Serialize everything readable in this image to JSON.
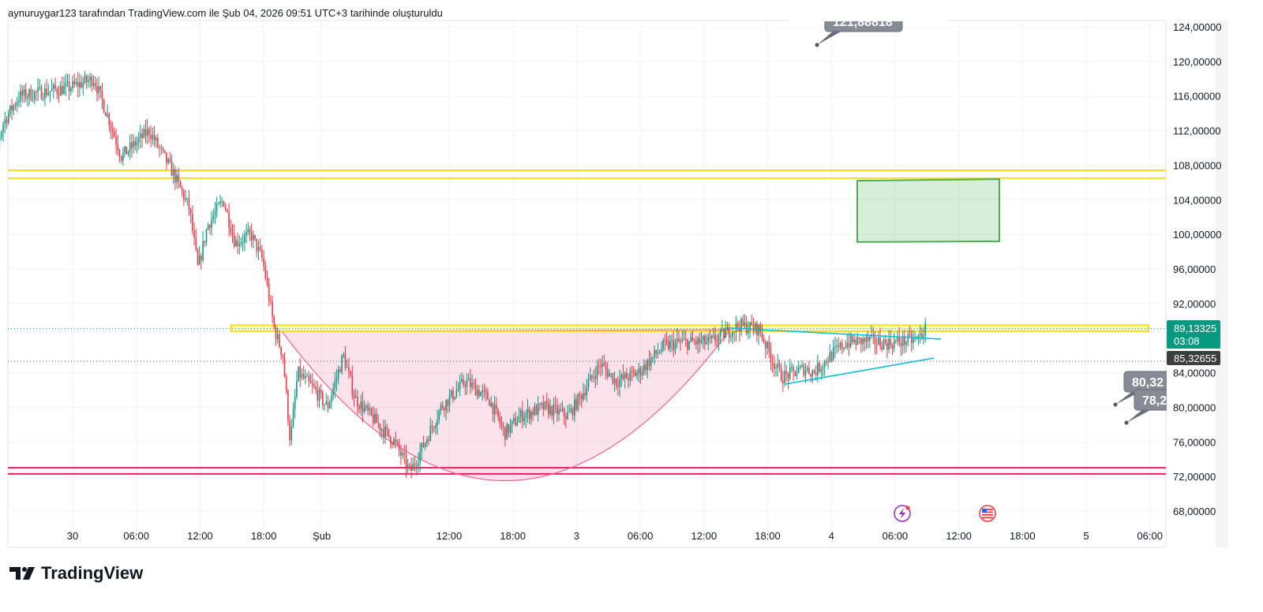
{
  "header": {
    "title": "aynuruygar123 tarafından TradingView.com ile Şub 04, 2026 09:51 UTC+3 tarihinde oluşturuldu"
  },
  "logo": {
    "text": "TradingView"
  },
  "chart_data": {
    "type": "candlestick",
    "title": "",
    "ylim": [
      66,
      126
    ],
    "y_ticks": [
      "124,00000",
      "120,00000",
      "116,00000",
      "112,00000",
      "108,00000",
      "104,00000",
      "100,00000",
      "96,00000",
      "92,00000",
      "84,00000",
      "80,00000",
      "76,00000",
      "72,00000",
      "68,00000"
    ],
    "y_tick_values": [
      124,
      120,
      116,
      112,
      108,
      104,
      100,
      96,
      92,
      84,
      80,
      76,
      72,
      68
    ],
    "x_ticks": [
      "30",
      "06:00",
      "12:00",
      "18:00",
      "Şub",
      "12:00",
      "18:00",
      "3",
      "06:00",
      "12:00",
      "18:00",
      "4",
      "06:00",
      "12:00",
      "18:00",
      "5",
      "06:00"
    ],
    "x_tick_hours": [
      0,
      6,
      12,
      18,
      24,
      36,
      42,
      48,
      54,
      60,
      66,
      72,
      78,
      84,
      90,
      96,
      102
    ],
    "price_path_hours": [
      -8.5,
      -8,
      -6.5,
      -5,
      -0.2,
      2,
      3.5,
      4.6,
      7.2,
      9.5,
      11,
      11.8,
      12.7,
      14.2,
      15.3,
      16.8,
      17.9,
      19,
      19.8,
      20.5,
      21.2,
      22.8,
      24,
      25.5,
      26.6,
      28.8,
      30.3,
      31.8,
      33.2,
      34.7,
      37,
      39.2,
      40.7,
      42.2,
      44.4,
      46.7,
      48.2,
      49.7,
      51.2,
      53.3,
      55.6,
      57.1,
      60,
      62.8,
      64.7,
      65.7,
      66.8,
      69,
      69.8,
      71.4,
      72.9,
      75.1,
      76.6,
      79.5,
      80.4
    ],
    "price_path": [
      118,
      106.5,
      113,
      116,
      117,
      118,
      113,
      109,
      112,
      107,
      103,
      96,
      101,
      104,
      99,
      100,
      97,
      89,
      86,
      76,
      84,
      82,
      80,
      86,
      81,
      78,
      76,
      72.5,
      76,
      80,
      83,
      81,
      77,
      79,
      80,
      79,
      82,
      85,
      83,
      84,
      87,
      87.5,
      87.5,
      89.5,
      89,
      86,
      83.5,
      84.5,
      84,
      86,
      87.5,
      87.7,
      87.4,
      87.8,
      89.2
    ],
    "last_price": "89,13325",
    "countdown": "03:08",
    "prev_price": "85,32655",
    "callouts": [
      "121,88818",
      "80,32",
      "78,2"
    ],
    "levels": {
      "resistance_band": [
        106.5,
        107.4
      ],
      "support_band": [
        72.3,
        73.0
      ],
      "neckline_band": [
        88.8,
        89.5
      ]
    },
    "target_zone": [
      99.2,
      106.2
    ],
    "colors": {
      "up": "#089981",
      "down": "#f23645",
      "yellow": "#f7e01b",
      "pink": "#e91e63",
      "green": "#4caf50",
      "teal": "#00bcd4"
    }
  },
  "icons": [
    "lightning-icon",
    "us-flag-icon"
  ]
}
